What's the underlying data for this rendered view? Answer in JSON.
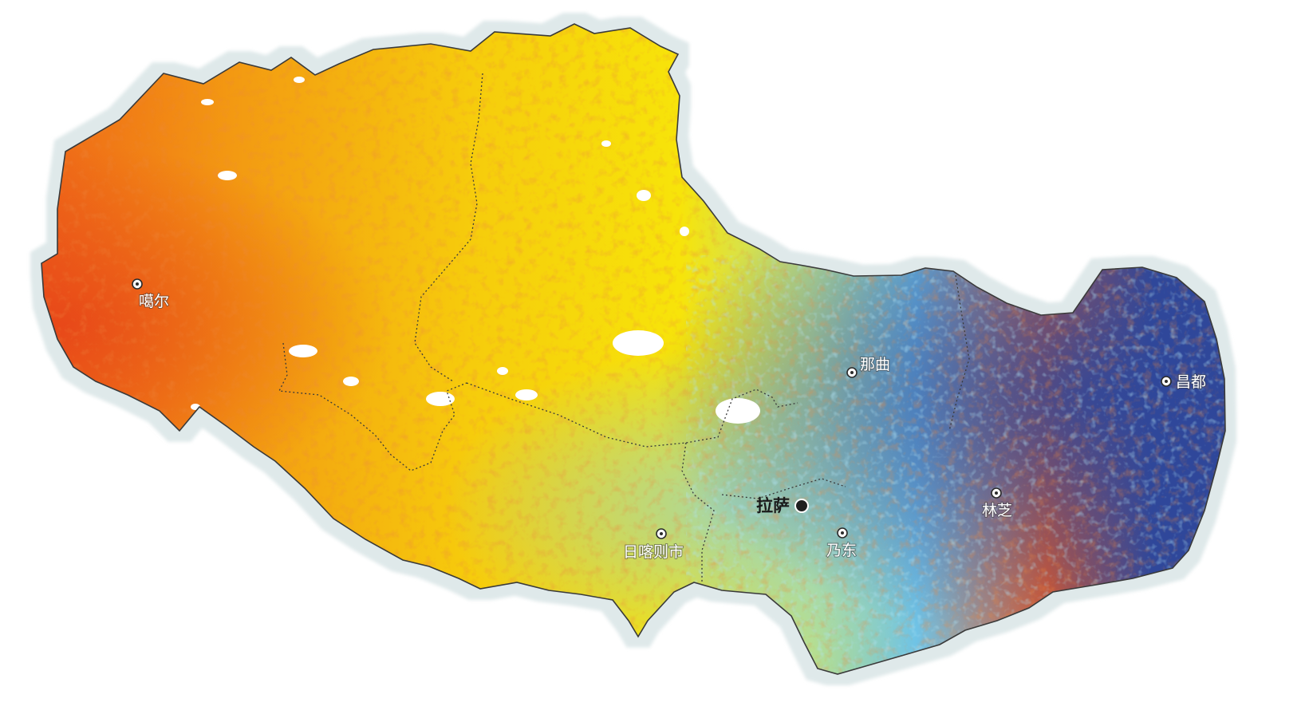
{
  "map": {
    "colors": {
      "background": "#ffffff",
      "outer_halo": "#dfe9ea",
      "border_line": "#3a3a3a",
      "very_high": "#e3301a",
      "high": "#f08a14",
      "medium_high": "#f7c20c",
      "medium": "#f7e60a",
      "medium_low": "#b9e08a",
      "low": "#7fc9e4",
      "very_low": "#2f479a",
      "water": "#ffffff"
    },
    "capital": {
      "name": "拉萨",
      "icon": "capital-dot-icon"
    },
    "cities": [
      {
        "id": "ali",
        "name": "噶尔",
        "icon": "city-circle-icon"
      },
      {
        "id": "naqu",
        "name": "那曲",
        "icon": "city-circle-icon"
      },
      {
        "id": "changdu",
        "name": "昌都",
        "icon": "city-circle-icon"
      },
      {
        "id": "linzhi",
        "name": "林芝",
        "icon": "city-circle-icon"
      },
      {
        "id": "shannan",
        "name": "乃东",
        "icon": "city-circle-icon"
      },
      {
        "id": "rikaze",
        "name": "日喀则市",
        "icon": "city-circle-icon"
      }
    ]
  }
}
